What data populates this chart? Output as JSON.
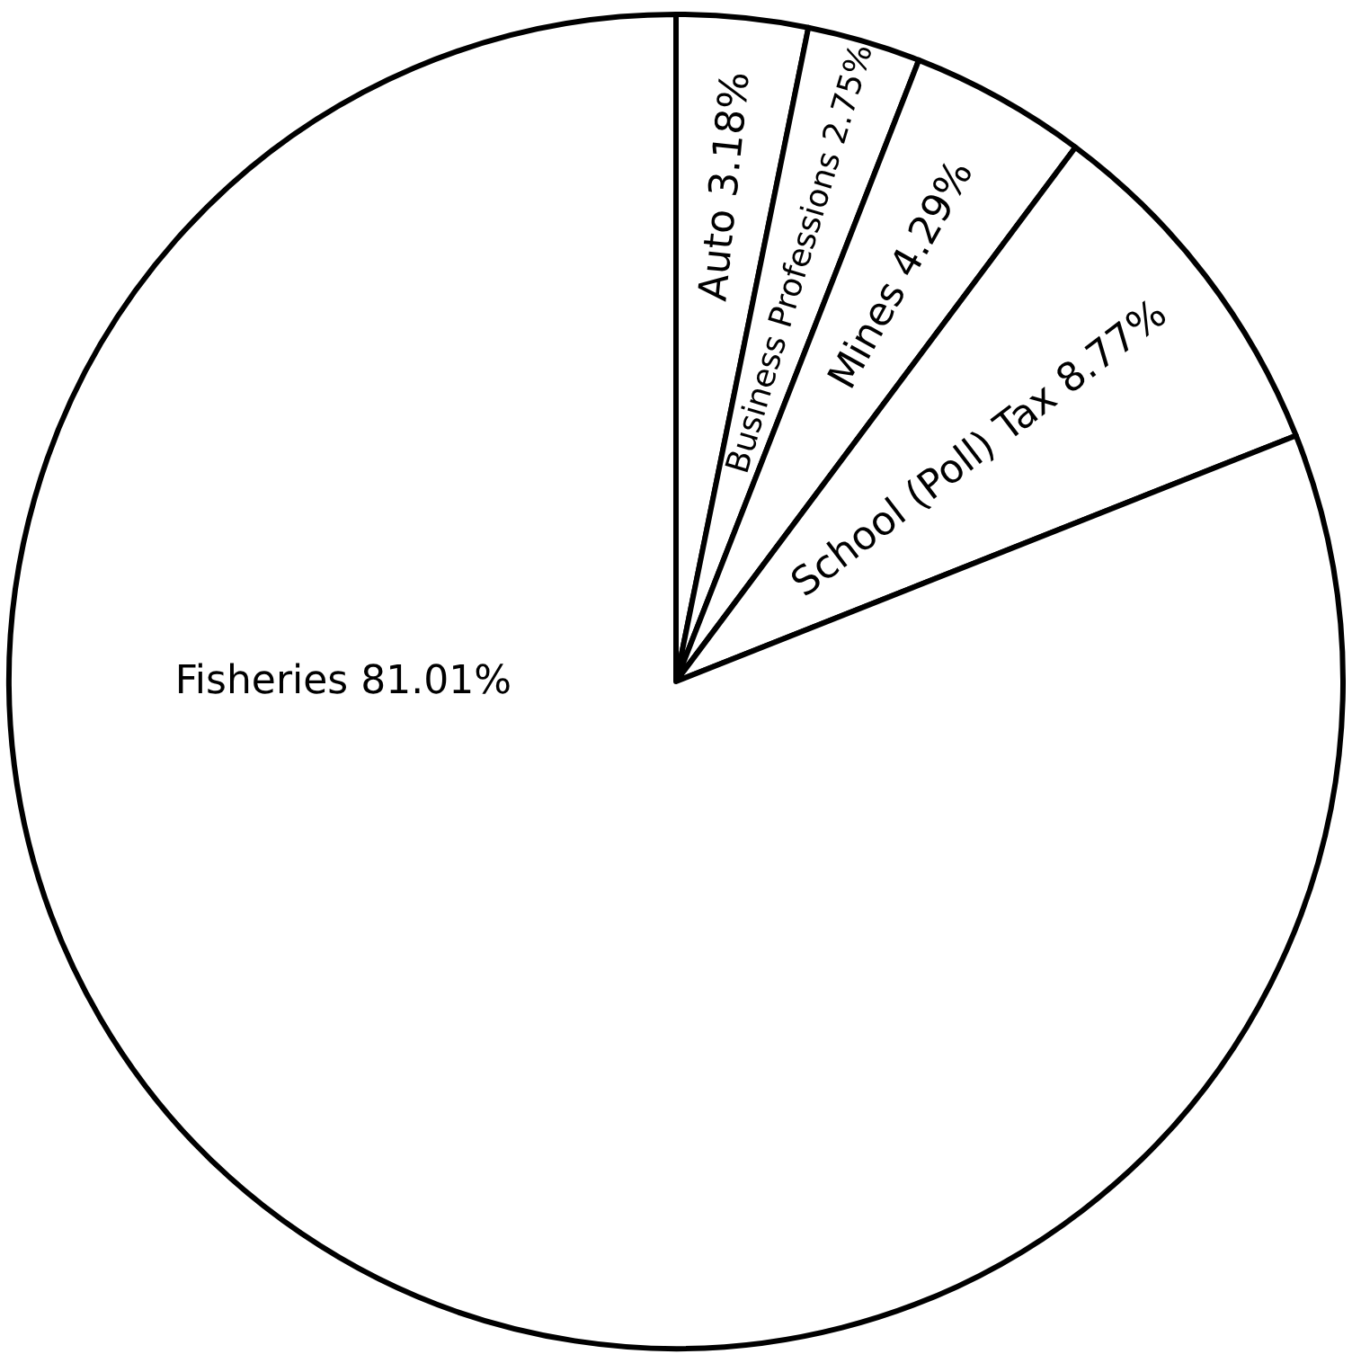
{
  "chart_data": {
    "type": "pie",
    "categories": [
      "Auto",
      "Business Professions",
      "Mines",
      "School (Poll) Tax",
      "Fisheries"
    ],
    "values": [
      3.18,
      2.75,
      4.29,
      8.77,
      81.01
    ],
    "value_labels": [
      "3.18%",
      "2.75%",
      "4.29%",
      "8.77%",
      "81.01%"
    ],
    "colors": [
      "#ffffff",
      "#ffffff",
      "#ffffff",
      "#ffffff",
      "#ffffff"
    ],
    "legend": false
  }
}
